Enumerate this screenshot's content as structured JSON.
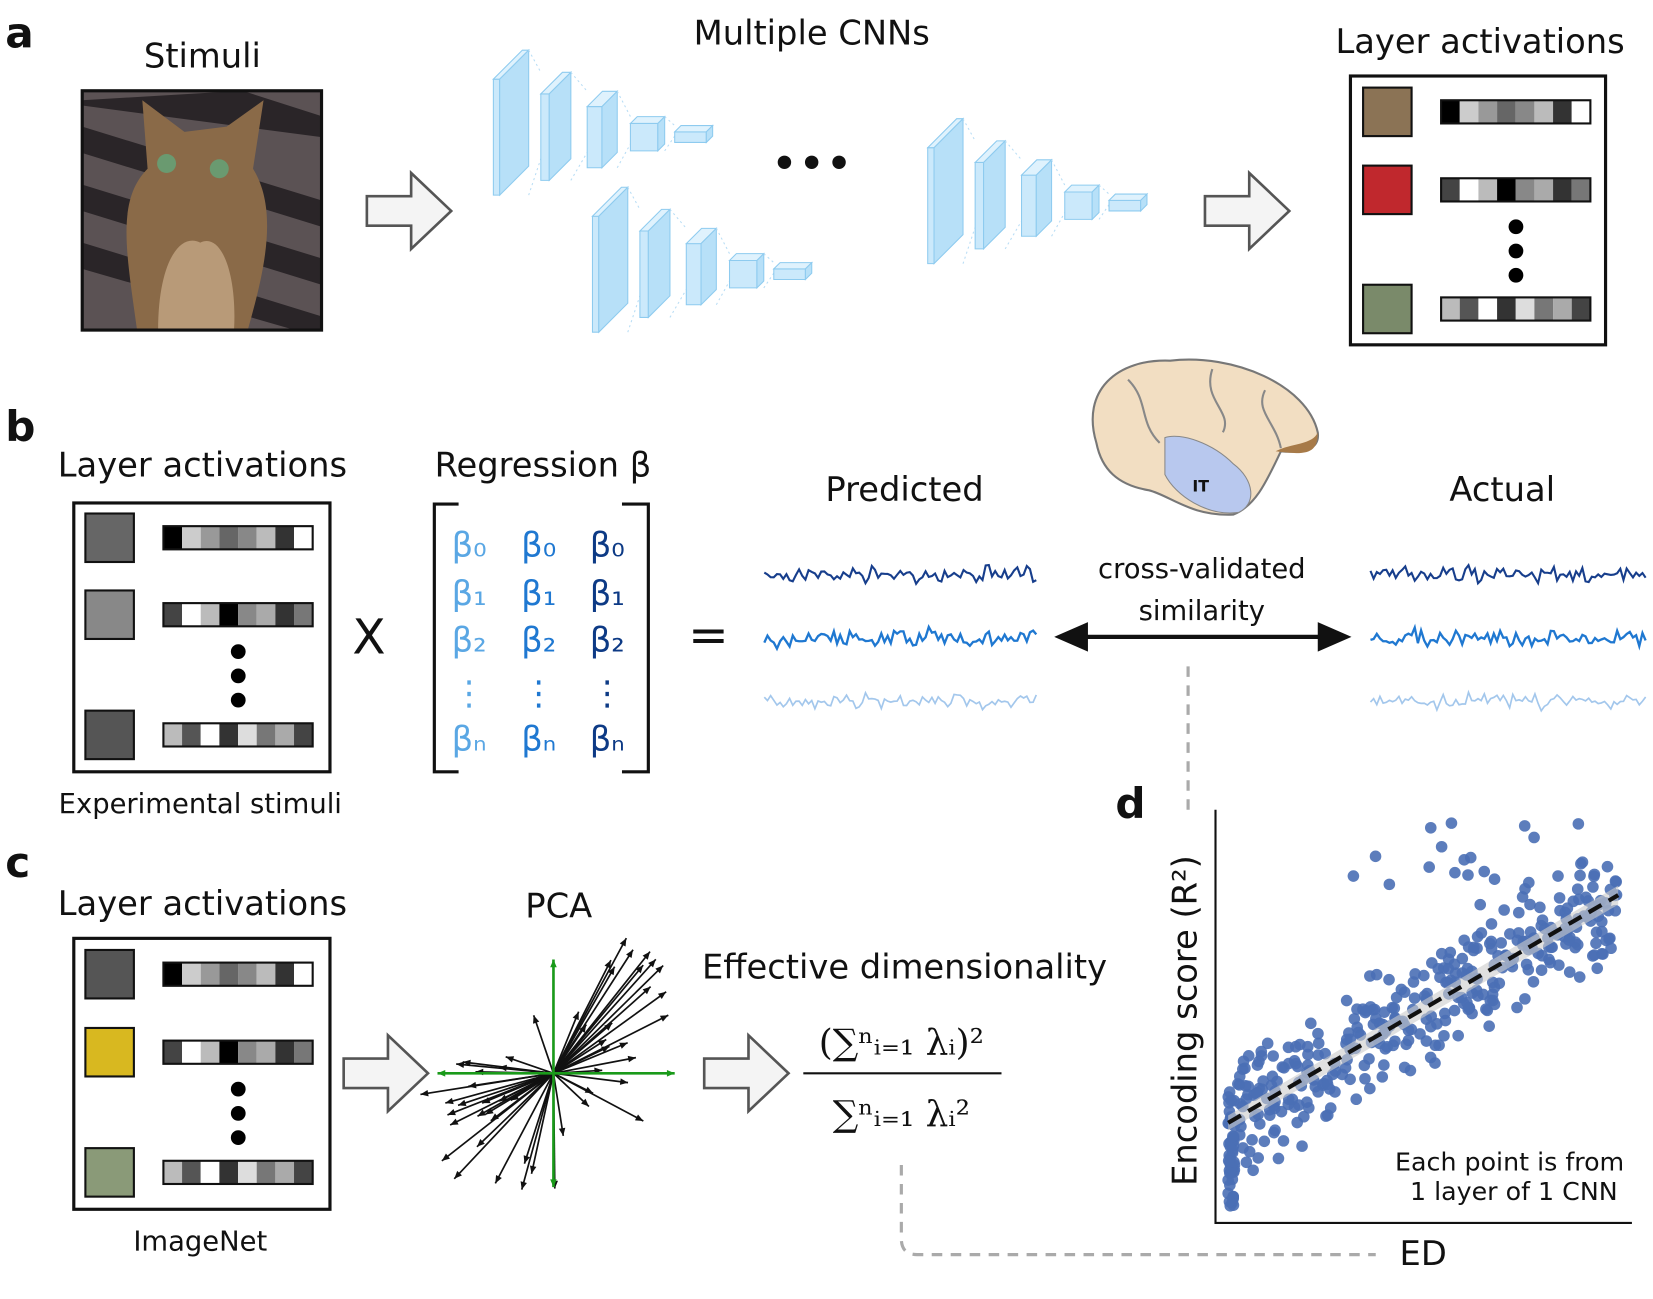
{
  "panel_labels": [
    "a",
    "b",
    "c",
    "d"
  ],
  "panel_a": {
    "stimuli_title": "Stimuli",
    "cnn_title": "Multiple CNNs",
    "activations_title": "Layer activations"
  },
  "panel_b": {
    "activations_title": "Layer activations",
    "stimuli_caption": "Experimental stimuli",
    "times": "X",
    "regression_title": "Regression β",
    "beta_columns": [
      [
        "β₀",
        "β₁",
        "β₂",
        "⋮",
        "βₙ"
      ],
      [
        "β₀",
        "β₁",
        "β₂",
        "⋮",
        "βₙ"
      ],
      [
        "β₀",
        "β₁",
        "β₂",
        "⋮",
        "βₙ"
      ]
    ],
    "equals": "=",
    "predicted": "Predicted",
    "actual": "Actual",
    "brain_label": "IT",
    "similarity": [
      "cross-validated",
      "similarity"
    ]
  },
  "panel_c": {
    "activations_title": "Layer activations",
    "stimuli_caption": "ImageNet",
    "pca": "PCA",
    "ed_title": "Effective dimensionality",
    "formula": {
      "numerator": "(∑ⁿᵢ₌₁ λᵢ)²",
      "denominator": "∑ⁿᵢ₌₁ λᵢ²"
    }
  },
  "panel_d": {
    "y_axis_label": "Encoding score (R²)",
    "x_axis_label": "ED",
    "note": [
      "Each point is from",
      "1 layer of 1 CNN"
    ]
  }
}
